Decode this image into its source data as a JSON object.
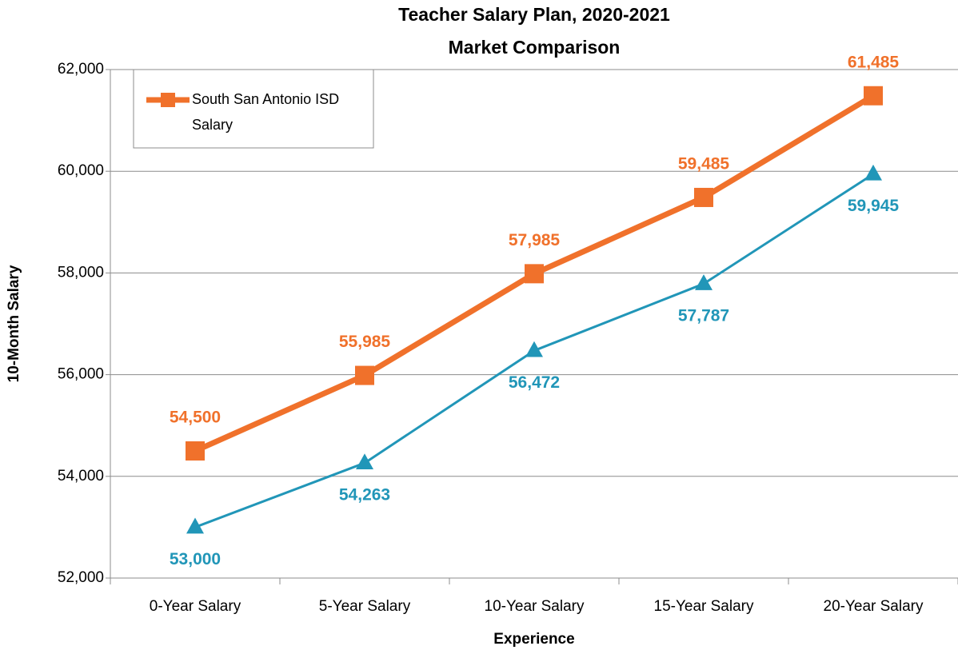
{
  "chart_data": {
    "type": "line",
    "title": "Teacher Salary Plan, 2020-2021",
    "subtitle": "Market Comparison",
    "x_label": "Experience",
    "y_label": "10-Month Salary",
    "categories": [
      "0-Year Salary",
      "5-Year Salary",
      "10-Year Salary",
      "15-Year Salary",
      "20-Year Salary"
    ],
    "series": [
      {
        "name": "South San Antonio ISD Salary",
        "color": "#f0712b",
        "marker": "square",
        "values": [
          54500,
          55985,
          57985,
          59485,
          61485
        ],
        "value_labels": [
          "54,500",
          "55,985",
          "57,985",
          "59,485",
          "61,485"
        ]
      },
      {
        "color": "#2196b8",
        "marker": "triangle",
        "values": [
          53000,
          54263,
          56472,
          57787,
          59945
        ],
        "value_labels": [
          "53,000",
          "54,263",
          "56,472",
          "57,787",
          "59,945"
        ]
      }
    ],
    "ylim": [
      52000,
      62000
    ],
    "yticks": [
      {
        "value": 52000,
        "label": "52,000"
      },
      {
        "value": 54000,
        "label": "54,000"
      },
      {
        "value": 56000,
        "label": "56,000"
      },
      {
        "value": 58000,
        "label": "58,000"
      },
      {
        "value": 60000,
        "label": "60,000"
      },
      {
        "value": 62000,
        "label": "62,000"
      }
    ],
    "grid": true,
    "legend": "upper left"
  }
}
